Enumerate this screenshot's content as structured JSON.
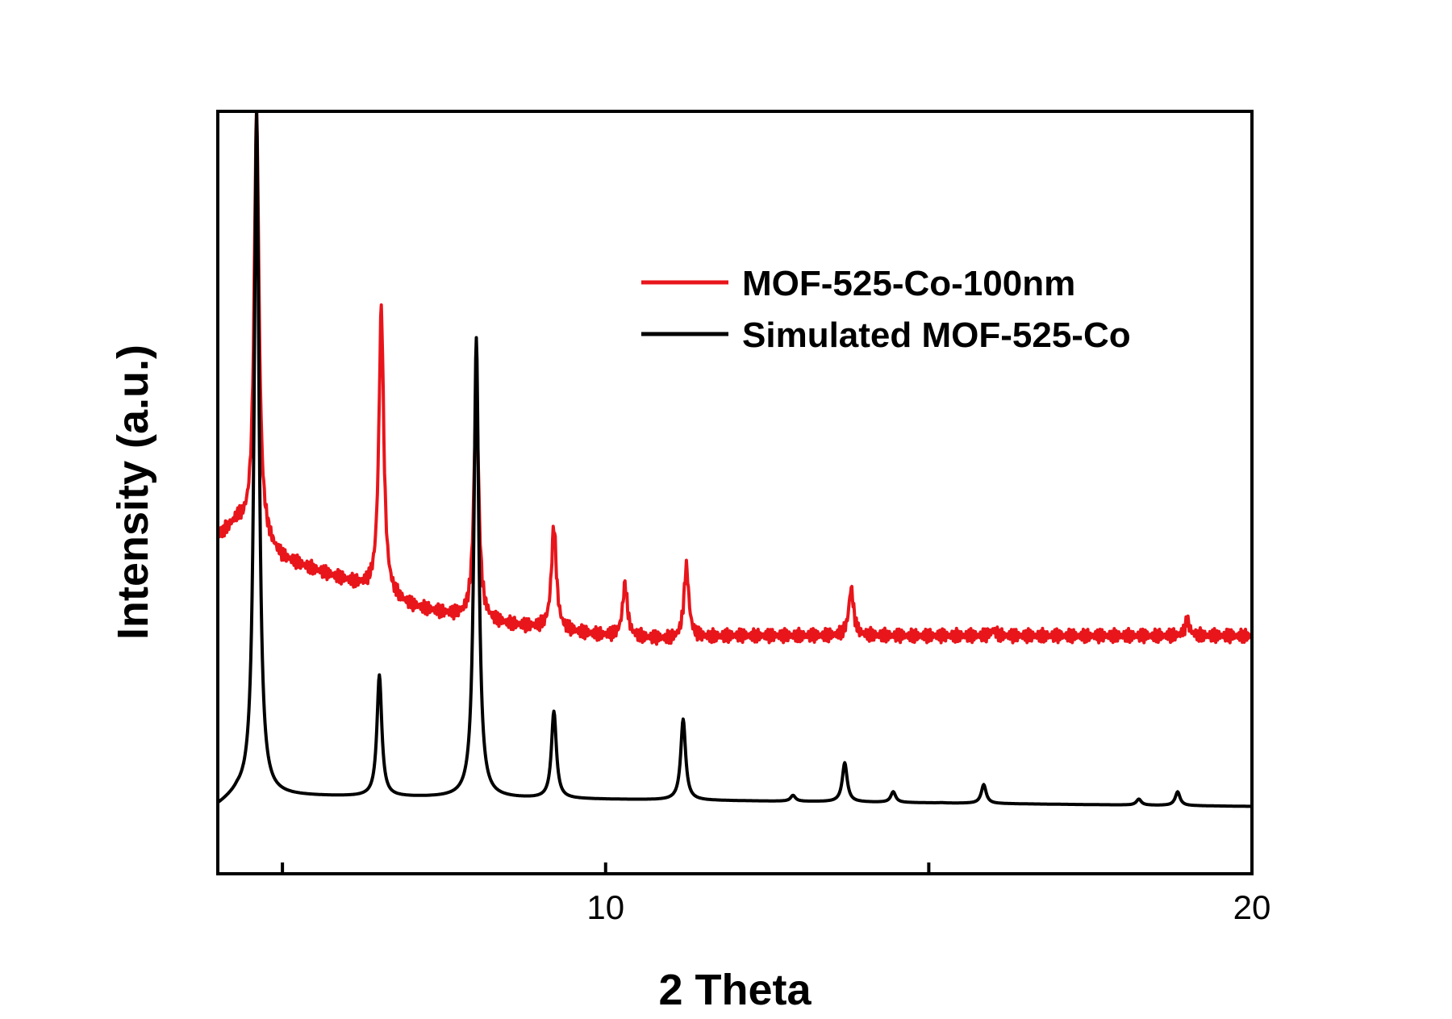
{
  "chart_data": {
    "type": "line",
    "xlabel": "2 Theta",
    "ylabel": "Intensity (a.u.)",
    "xlim": [
      4,
      20
    ],
    "ylim": [
      0,
      100
    ],
    "xticks": [
      5,
      10,
      15,
      20
    ],
    "xtick_labels": [
      "",
      "10",
      "",
      "20"
    ],
    "y_ticks_shown": false,
    "grid": false,
    "legend_position": "top-right",
    "series": [
      {
        "name": "MOF-525-Co-100nm",
        "color": "#e8151b",
        "baseline": [
          [
            4.0,
            41.5
          ],
          [
            4.3,
            43.5
          ],
          [
            5.0,
            38.5
          ],
          [
            6.0,
            35.5
          ],
          [
            7.0,
            32.0
          ],
          [
            8.0,
            30.0
          ],
          [
            9.0,
            29.0
          ],
          [
            10.0,
            28.0
          ],
          [
            11.0,
            27.5
          ],
          [
            12.0,
            28.0
          ],
          [
            14.0,
            28.0
          ],
          [
            16.0,
            28.0
          ],
          [
            18.0,
            28.0
          ],
          [
            20.0,
            28.0
          ]
        ],
        "peaks": [
          {
            "x": 4.6,
            "y": 100.0
          },
          {
            "x": 6.53,
            "y": 73.0
          },
          {
            "x": 8.0,
            "y": 61.5
          },
          {
            "x": 9.2,
            "y": 43.0
          },
          {
            "x": 10.3,
            "y": 35.0
          },
          {
            "x": 11.25,
            "y": 37.5
          },
          {
            "x": 13.8,
            "y": 34.5
          },
          {
            "x": 16.0,
            "y": 28.8
          },
          {
            "x": 19.0,
            "y": 30.0
          }
        ]
      },
      {
        "name": "Simulated MOF-525-Co",
        "color": "#000000",
        "baseline": [
          [
            4.0,
            4.5
          ],
          [
            4.3,
            6.0
          ],
          [
            20.0,
            4.5
          ]
        ],
        "peaks": [
          {
            "x": 4.6,
            "y": 100.0
          },
          {
            "x": 6.5,
            "y": 22.5
          },
          {
            "x": 8.0,
            "y": 69.0
          },
          {
            "x": 9.2,
            "y": 17.5
          },
          {
            "x": 11.2,
            "y": 16.5
          },
          {
            "x": 12.9,
            "y": 6.0
          },
          {
            "x": 13.7,
            "y": 10.5
          },
          {
            "x": 14.45,
            "y": 6.5
          },
          {
            "x": 15.2,
            "y": 5.0
          },
          {
            "x": 15.85,
            "y": 7.5
          },
          {
            "x": 18.25,
            "y": 5.5
          },
          {
            "x": 18.85,
            "y": 6.5
          }
        ]
      }
    ]
  }
}
